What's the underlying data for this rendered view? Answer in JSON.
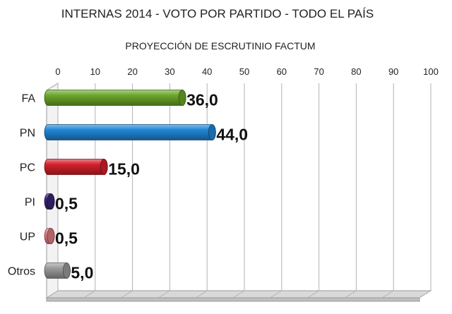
{
  "chart_data": {
    "type": "bar",
    "orientation": "horizontal",
    "title": "INTERNAS 2014 - VOTO POR PARTIDO - TODO EL PAÍS",
    "subtitle": "PROYECCIÓN DE ESCRUTINIO FACTUM",
    "categories": [
      "FA",
      "PN",
      "PC",
      "PI",
      "UP",
      "Otros"
    ],
    "values": [
      36.0,
      44.0,
      15.0,
      0.5,
      0.5,
      5.0
    ],
    "data_labels": [
      "36,0",
      "44,0",
      "15,0",
      "0,5",
      "0,5",
      "5,0"
    ],
    "xlim": [
      0,
      100
    ],
    "x_ticks": [
      0,
      10,
      20,
      30,
      40,
      50,
      60,
      70,
      80,
      90,
      100
    ],
    "x_tick_labels": [
      "0",
      "10",
      "20",
      "30",
      "40",
      "50",
      "60",
      "70",
      "80",
      "90",
      "100"
    ],
    "axis_position": "top",
    "grid": true,
    "legend": "none",
    "colors": {
      "FA": "#6aa628",
      "PN": "#1f86d6",
      "PC": "#d31f2a",
      "PI": "#3b2378",
      "UP": "#e07b80",
      "Otros": "#9a9a9a"
    }
  }
}
